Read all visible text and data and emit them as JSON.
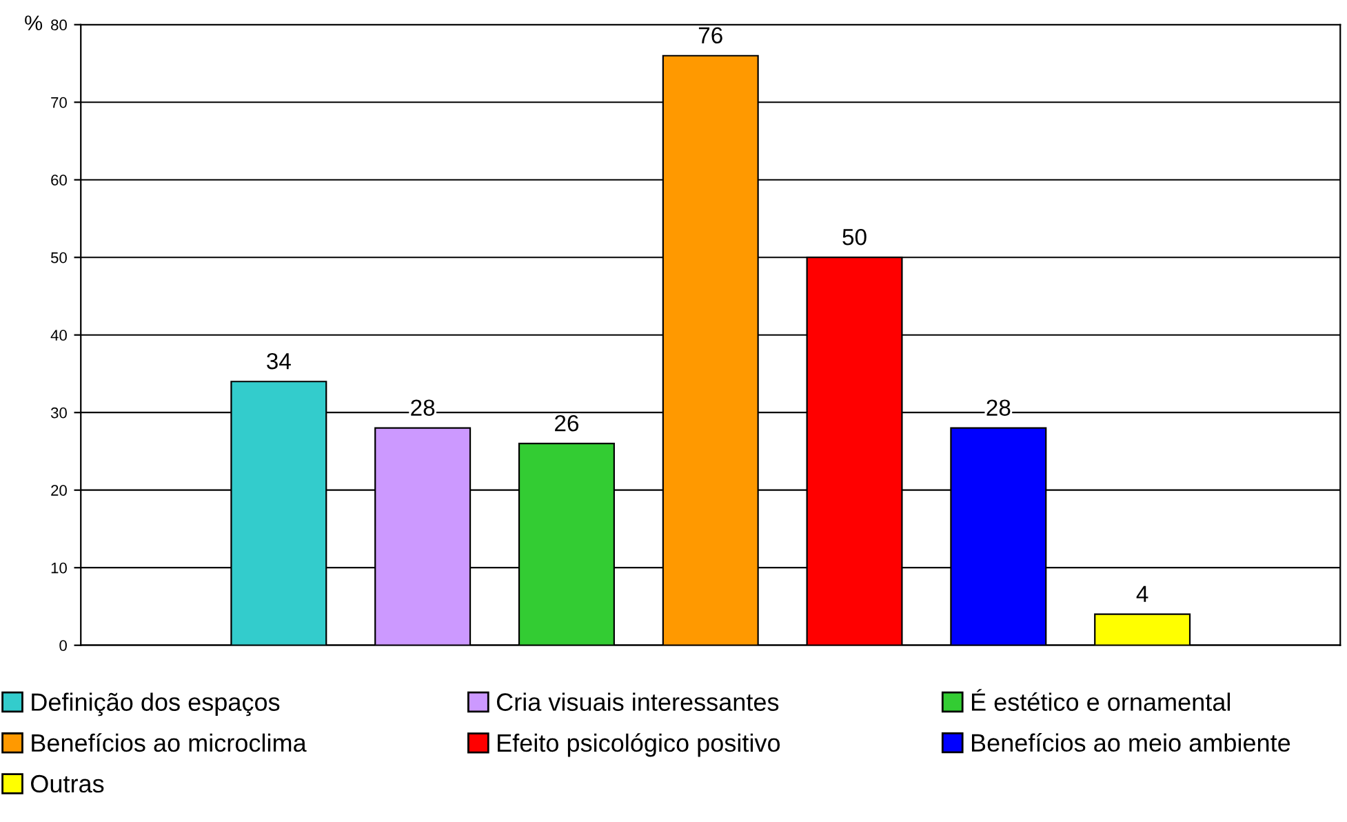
{
  "chart_data": {
    "type": "bar",
    "ylabel": "%",
    "categories": [
      null
    ],
    "series": [
      {
        "name": "Definição dos espaços",
        "color": "#33cccc",
        "values": [
          34
        ]
      },
      {
        "name": "Cria visuais interessantes",
        "color": "#cc99ff",
        "values": [
          28
        ]
      },
      {
        "name": "É estético e ornamental",
        "color": "#33cc33",
        "values": [
          26
        ]
      },
      {
        "name": "Benefícios ao microclima",
        "color": "#ff9900",
        "values": [
          76
        ]
      },
      {
        "name": "Efeito psicológico positivo",
        "color": "#ff0000",
        "values": [
          50
        ]
      },
      {
        "name": "Benefícios ao meio ambiente",
        "color": "#0000ff",
        "values": [
          28
        ]
      },
      {
        "name": "Outras",
        "color": "#ffff00",
        "values": [
          4
        ]
      }
    ],
    "ylim": [
      0,
      80
    ],
    "yticks": [
      0,
      10,
      20,
      30,
      40,
      50,
      60,
      70,
      80
    ],
    "grid": "y",
    "data_labels": true,
    "legend": "bottom",
    "tick_labels": "y"
  }
}
